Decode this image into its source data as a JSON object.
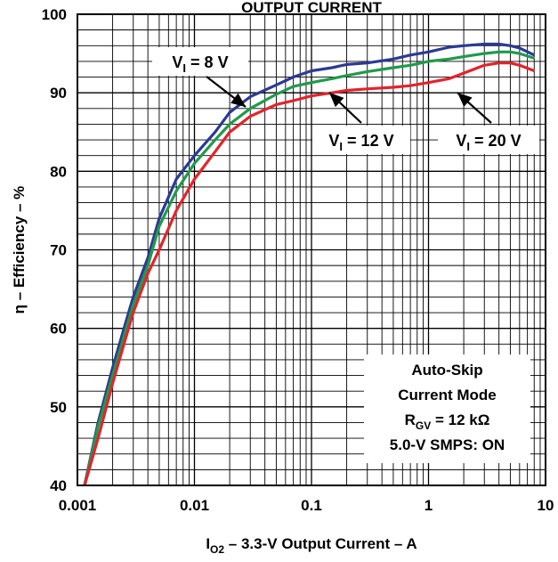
{
  "chart_data": {
    "type": "line",
    "title": "OUTPUT CURRENT",
    "xlabel": {
      "pre": "I",
      "sub": "O2",
      "post": " – 3.3-V Output Current –  A"
    },
    "ylabel": "η – Efficiency – %",
    "x_scale": "log",
    "xlim": [
      0.001,
      10
    ],
    "ylim": [
      40,
      100
    ],
    "x_ticks": [
      "0.001",
      "0.01",
      "0.1",
      "1",
      "10"
    ],
    "y_ticks": [
      "40",
      "50",
      "60",
      "70",
      "80",
      "90",
      "100"
    ],
    "grid": true,
    "series": [
      {
        "name": "VI = 8 V",
        "color": "#2b3a93",
        "label": {
          "pre": "V",
          "sub": "I",
          "post": " = 8 V"
        },
        "x": [
          0.00115,
          0.0015,
          0.002,
          0.0025,
          0.003,
          0.004,
          0.005,
          0.007,
          0.01,
          0.015,
          0.02,
          0.03,
          0.05,
          0.07,
          0.1,
          0.15,
          0.2,
          0.3,
          0.5,
          0.7,
          1,
          1.5,
          2,
          3,
          4,
          5,
          6,
          8
        ],
        "y": [
          40,
          48,
          55,
          60,
          64,
          69,
          74,
          79,
          82,
          85,
          87.5,
          89.5,
          91,
          92,
          92.8,
          93.2,
          93.6,
          93.8,
          94.3,
          94.8,
          95.2,
          95.8,
          96,
          96.2,
          96.2,
          96,
          95.7,
          94.8
        ]
      },
      {
        "name": "VI = 12 V",
        "color": "#1f9a4c",
        "label": {
          "pre": "V",
          "sub": "I",
          "post": " = 12 V"
        },
        "x": [
          0.00115,
          0.0015,
          0.002,
          0.0025,
          0.003,
          0.004,
          0.005,
          0.007,
          0.01,
          0.015,
          0.02,
          0.03,
          0.05,
          0.07,
          0.1,
          0.15,
          0.2,
          0.3,
          0.5,
          0.7,
          1,
          1.5,
          2,
          3,
          4,
          5,
          6,
          8
        ],
        "y": [
          40,
          47.5,
          54,
          59,
          63,
          68,
          73,
          77.5,
          81,
          84,
          86,
          88,
          89.8,
          90.8,
          91.3,
          91.8,
          92.2,
          92.7,
          93.2,
          93.5,
          94,
          94.3,
          94.6,
          95,
          95.2,
          95.2,
          95,
          94.4
        ]
      },
      {
        "name": "VI = 20 V",
        "color": "#e2242b",
        "label": {
          "pre": "V",
          "sub": "I",
          "post": " = 20 V"
        },
        "x": [
          0.00115,
          0.0015,
          0.002,
          0.0025,
          0.003,
          0.004,
          0.005,
          0.007,
          0.01,
          0.015,
          0.02,
          0.03,
          0.05,
          0.07,
          0.1,
          0.15,
          0.2,
          0.3,
          0.5,
          0.7,
          1,
          1.5,
          2,
          3,
          4,
          5,
          6,
          8
        ],
        "y": [
          40,
          46,
          53,
          58,
          62,
          67,
          70,
          75,
          79,
          82.5,
          85,
          87,
          88.5,
          89,
          89.6,
          90,
          90.3,
          90.5,
          90.7,
          90.9,
          91.3,
          91.8,
          92.5,
          93.5,
          93.8,
          93.8,
          93.5,
          92.8
        ]
      }
    ],
    "annotation": {
      "lines": [
        {
          "text": "Auto-Skip"
        },
        {
          "text": "Current Mode"
        },
        {
          "pre": "R",
          "sub": "GV",
          "post": " = 12 kΩ"
        },
        {
          "text": "5.0-V SMPS: ON"
        }
      ]
    }
  }
}
